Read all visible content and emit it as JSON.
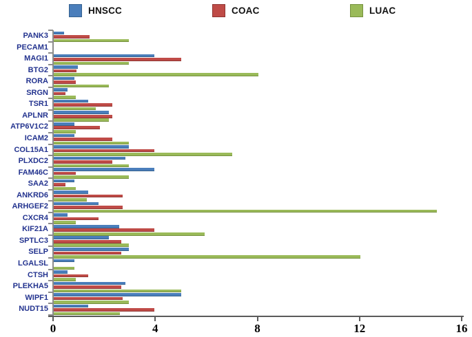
{
  "figure_title": "",
  "legend": {
    "position": "top",
    "items": [
      {
        "label": "HNSCC",
        "color": "#4a7ebb"
      },
      {
        "label": "COAC",
        "color": "#bf4b47"
      },
      {
        "label": "LUAC",
        "color": "#9aba59"
      }
    ]
  },
  "axis": {
    "x_tick_labels": [
      "0",
      "4",
      "8",
      "12",
      "16"
    ],
    "x_tick_values": [
      0,
      4,
      8,
      12,
      16
    ]
  },
  "chart_data": {
    "type": "bar",
    "orientation": "horizontal",
    "title": "",
    "xlabel": "",
    "ylabel": "",
    "xlim": [
      0,
      16
    ],
    "x_ticks": [
      0,
      4,
      8,
      12,
      16
    ],
    "grid": false,
    "legend_position": "top",
    "categories": [
      "PANK3",
      "PECAM1",
      "MAGI1",
      "BTG2",
      "RORA",
      "SRGN",
      "TSR1",
      "APLNR",
      "ATP6V1C2",
      "ICAM2",
      "COL15A1",
      "PLXDC2",
      "FAM46C",
      "SAA2",
      "ANKRD6",
      "ARHGEF2",
      "CXCR4",
      "KIF21A",
      "SPTLC3",
      "SELP",
      "LGALSL",
      "CTSH",
      "PLEKHA5",
      "WIPF1",
      "NUDT15"
    ],
    "series": [
      {
        "name": "HNSCC",
        "color": "#4a7ebb",
        "values": [
          0.4,
          0,
          3.95,
          0.95,
          0.8,
          0.55,
          1.35,
          2.15,
          0.8,
          0.8,
          2.95,
          2.8,
          3.95,
          0.8,
          1.35,
          1.75,
          0.55,
          2.55,
          2.15,
          2.95,
          0.8,
          0.55,
          2.8,
          5.0,
          1.35
        ]
      },
      {
        "name": "COAC",
        "color": "#bf4b47",
        "values": [
          1.4,
          0,
          5.0,
          0.9,
          0.85,
          0.45,
          2.3,
          2.3,
          1.8,
          2.3,
          3.95,
          2.3,
          0.85,
          0.45,
          2.7,
          2.7,
          1.75,
          3.95,
          2.65,
          2.65,
          0,
          1.35,
          2.65,
          2.7,
          3.95
        ]
      },
      {
        "name": "LUAC",
        "color": "#9aba59",
        "values": [
          2.95,
          0,
          2.95,
          8.0,
          2.15,
          0.85,
          1.65,
          2.15,
          0.85,
          2.95,
          7.0,
          2.95,
          2.95,
          0.85,
          1.3,
          15.0,
          0.85,
          5.9,
          2.95,
          12.0,
          0.8,
          0.85,
          5.0,
          2.95,
          2.6
        ]
      }
    ]
  }
}
